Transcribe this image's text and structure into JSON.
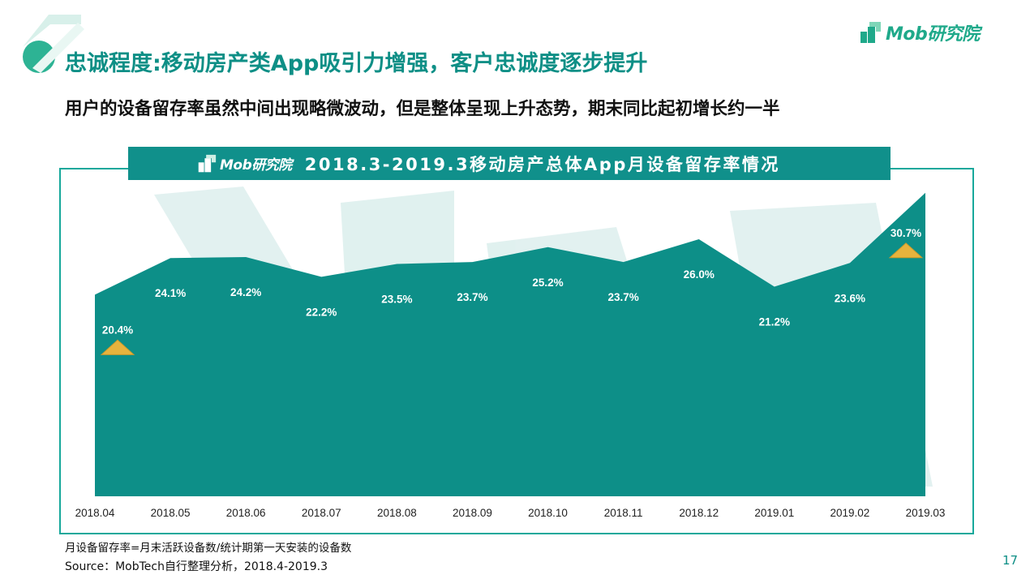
{
  "header": {
    "logo_text": "Mob研究院",
    "title": "忠诚程度:移动房产类App吸引力增强，客户忠诚度逐步提升",
    "subtitle": "用户的设备留存率虽然中间出现略微波动，但是整体呈现上升态势，期末同比起初增长约一半"
  },
  "banner": {
    "logo_text": "Mob研究院",
    "title": "2018.3-2019.3移动房产总体App月设备留存率情况"
  },
  "chart_data": {
    "type": "area",
    "title": "2018.3-2019.3移动房产总体App月设备留存率情况",
    "categories": [
      "2018.04",
      "2018.05",
      "2018.06",
      "2018.07",
      "2018.08",
      "2018.09",
      "2018.10",
      "2018.11",
      "2018.12",
      "2019.01",
      "2019.02",
      "2019.03"
    ],
    "values": [
      20.4,
      24.1,
      24.2,
      22.2,
      23.5,
      23.7,
      25.2,
      23.7,
      26.0,
      21.2,
      23.6,
      30.7
    ],
    "data_labels": [
      "20.4%",
      "24.1%",
      "24.2%",
      "22.2%",
      "23.5%",
      "23.7%",
      "25.2%",
      "23.7%",
      "26.0%",
      "21.2%",
      "23.6%",
      "30.7%"
    ],
    "highlighted_points": [
      0,
      11
    ],
    "ylim": [
      0,
      31.5
    ],
    "grid": false,
    "xlabel": "",
    "ylabel": "",
    "colors": {
      "area": "#0d8f88",
      "label": "#ffffff",
      "marker": "#e7b33d"
    }
  },
  "footer": {
    "footnote": "月设备留存率=月末活跃设备数/统计期第一天安装的设备数",
    "source": "Source：MobTech自行整理分析，2018.4-2019.3",
    "page_number": "17"
  }
}
